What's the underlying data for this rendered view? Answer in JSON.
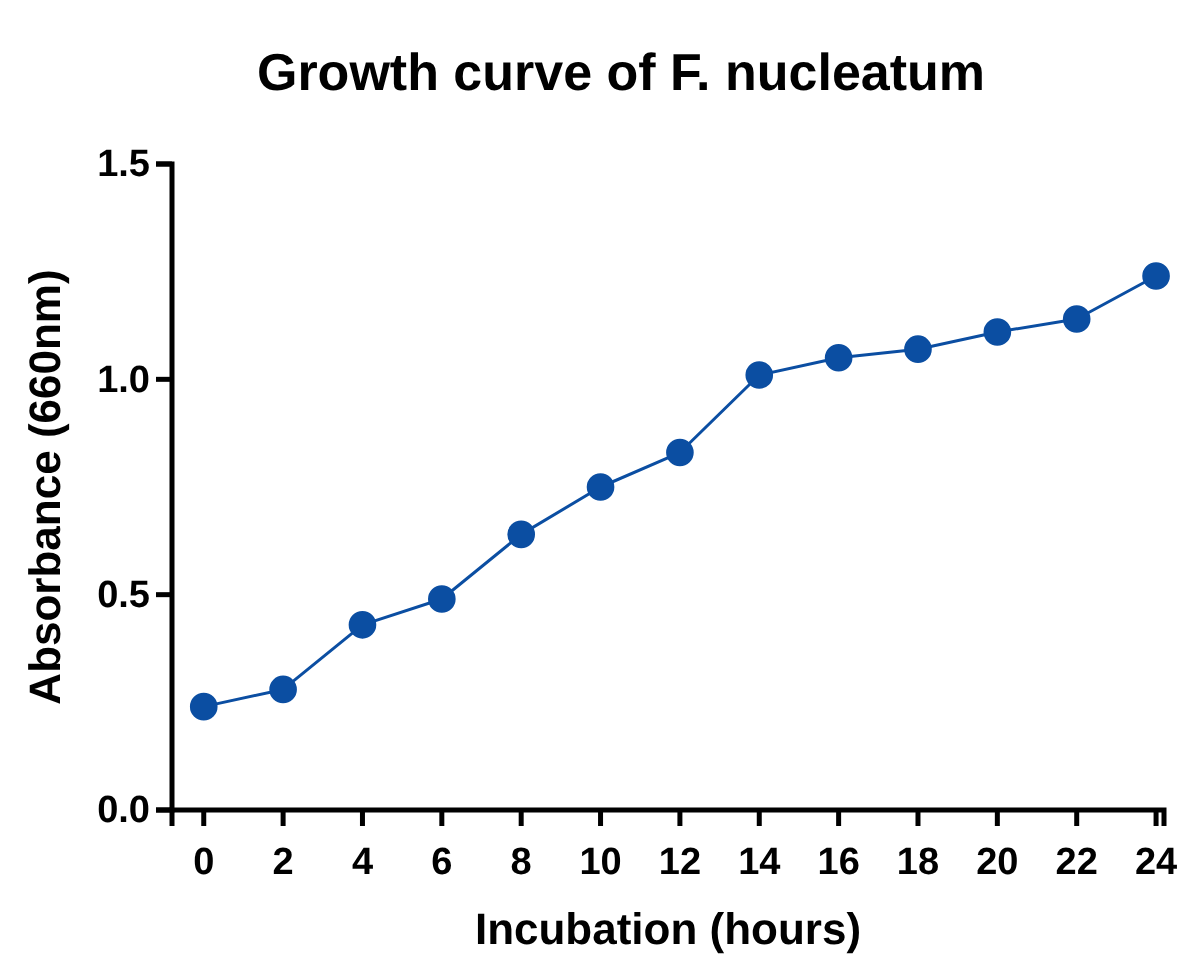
{
  "chart_data": {
    "type": "line",
    "title": "Growth curve of F. nucleatum",
    "xlabel": "Incubation (hours)",
    "ylabel": "Absorbance (660nm)",
    "x": [
      0,
      2,
      4,
      6,
      8,
      10,
      12,
      14,
      16,
      18,
      20,
      22,
      24
    ],
    "series": [
      {
        "color": "#0b4ea2",
        "values": [
          0.24,
          0.28,
          0.43,
          0.49,
          0.64,
          0.75,
          0.83,
          1.01,
          1.05,
          1.07,
          1.11,
          1.14,
          1.24
        ]
      }
    ],
    "xlim": [
      -0.8,
      24.2
    ],
    "xticks": [
      0,
      2,
      4,
      6,
      8,
      10,
      12,
      14,
      16,
      18,
      20,
      22,
      24
    ],
    "ylim": [
      0,
      1.5
    ],
    "yticks": [
      {
        "value": 0,
        "label": "0.0"
      },
      {
        "value": 0.5,
        "label": "0.5"
      },
      {
        "value": 1,
        "label": "1.0"
      },
      {
        "value": 1.5,
        "label": "1.5"
      }
    ],
    "marker": "circle",
    "line_style": "solid"
  }
}
